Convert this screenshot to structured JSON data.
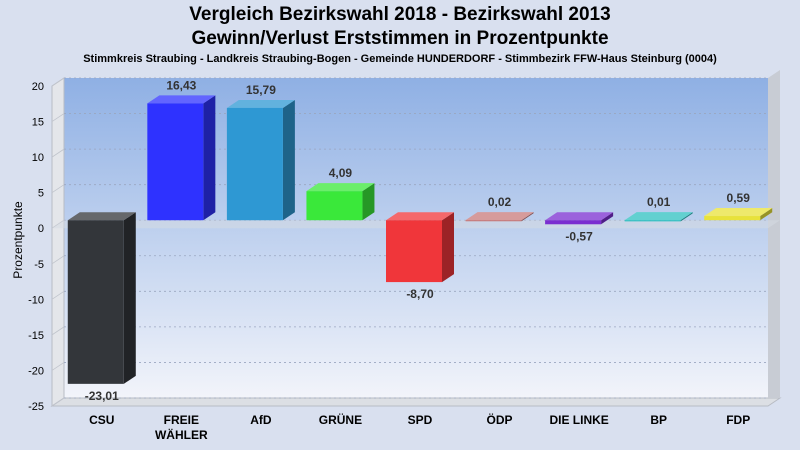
{
  "chart_data": {
    "type": "bar",
    "title": "Vergleich Bezirkswahl 2018 - Bezirkswahl 2013",
    "subtitle": "Gewinn/Verlust Erststimmen in Prozentpunkte",
    "caption": "Stimmkreis Straubing - Landkreis Straubing-Bogen - Gemeinde HUNDERDORF - Stimmbezirk FFW-Haus Steinburg (0004)",
    "ylabel": "Prozentpunkte",
    "xlabel": "",
    "ylim": [
      -25,
      20
    ],
    "yticks": [
      20,
      15,
      10,
      5,
      0,
      -5,
      -10,
      -15,
      -20,
      -25
    ],
    "grid": true,
    "categories": [
      "CSU",
      "FREIE WÄHLER",
      "AfD",
      "GRÜNE",
      "SPD",
      "ÖDP",
      "DIE LINKE",
      "BP",
      "FDP"
    ],
    "category_lines": [
      [
        "CSU"
      ],
      [
        "FREIE",
        "WÄHLER"
      ],
      [
        "AfD"
      ],
      [
        "GRÜNE"
      ],
      [
        "SPD"
      ],
      [
        "ÖDP"
      ],
      [
        "DIE LINKE"
      ],
      [
        "BP"
      ],
      [
        "FDP"
      ]
    ],
    "values": [
      -23.01,
      16.43,
      15.79,
      4.09,
      -8.7,
      0.02,
      -0.57,
      0.01,
      0.59
    ],
    "value_labels": [
      "-23,01",
      "16,43",
      "15,79",
      "4,09",
      "-8,70",
      "0,02",
      "-0,57",
      "0,01",
      "0,59"
    ],
    "colors": [
      "#33363a",
      "#2e32ff",
      "#2e98d3",
      "#3ae83a",
      "#f0363a",
      "#c87a7a",
      "#7a2ed0",
      "#2ec0c0",
      "#e8e23a"
    ]
  }
}
